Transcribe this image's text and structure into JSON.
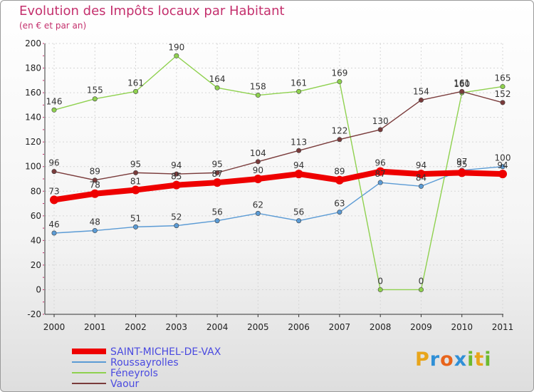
{
  "title": "Evolution des Impôts locaux par Habitant",
  "subtitle": "(en € et par an)",
  "logo": {
    "letters": [
      "P",
      "r",
      "o",
      "x",
      "i",
      "t",
      "i"
    ],
    "colors": [
      "#e8a51b",
      "#2f8fd6",
      "#e8641b",
      "#2f8fd6",
      "#6cba2e",
      "#e8a51b",
      "#6cba2e"
    ]
  },
  "chart_data": {
    "type": "line",
    "x": [
      "2000",
      "2001",
      "2002",
      "2003",
      "2004",
      "2005",
      "2006",
      "2007",
      "2008",
      "2009",
      "2010",
      "2011"
    ],
    "ylim": [
      -20,
      200
    ],
    "yticks": [
      -20,
      0,
      20,
      40,
      60,
      80,
      100,
      120,
      140,
      160,
      180,
      200
    ],
    "grid": true,
    "legend_position": "bottom-left",
    "series": [
      {
        "name": "SAINT-MICHEL-DE-VAX",
        "color": "#ee0000",
        "bold": true,
        "values": [
          73,
          78,
          81,
          85,
          87,
          90,
          94,
          89,
          96,
          94,
          95,
          94
        ],
        "labels": [
          "73",
          "78",
          "81",
          "85",
          "87",
          "90",
          "94",
          "89",
          "96",
          "94",
          "95",
          "94"
        ]
      },
      {
        "name": "Roussayrolles",
        "color": "#5b9bd5",
        "values": [
          46,
          48,
          51,
          52,
          56,
          62,
          56,
          63,
          87,
          84,
          97,
          100
        ],
        "labels": [
          "46",
          "48",
          "51",
          "52",
          "56",
          "62",
          "56",
          "63",
          "87",
          "84",
          "97",
          "100"
        ]
      },
      {
        "name": "Féneyrols",
        "color": "#8fd14f",
        "values": [
          146,
          155,
          161,
          190,
          164,
          158,
          161,
          169,
          0,
          0,
          160,
          165
        ],
        "labels": [
          "146",
          "155",
          "161",
          "190",
          "164",
          "158",
          "161",
          "169",
          "0",
          "0",
          "160",
          "165"
        ]
      },
      {
        "name": "Vaour",
        "color": "#7a3b3b",
        "values": [
          96,
          89,
          95,
          94,
          95,
          104,
          113,
          122,
          130,
          154,
          161,
          152
        ],
        "labels": [
          "96",
          "89",
          "95",
          "94",
          "95",
          "104",
          "113",
          "122",
          "130",
          "154",
          "161",
          "152"
        ]
      }
    ]
  }
}
